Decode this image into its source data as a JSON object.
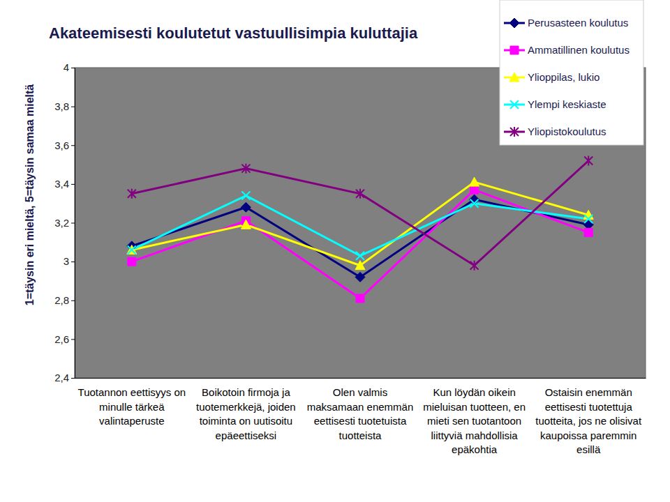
{
  "chart_data": {
    "type": "line",
    "title": "Akateemisesti koulutetut vastuullisimpia kuluttajia",
    "y_label": "1=täysin eri mieltä, 5=täysin samaa mieltä",
    "categories": [
      "Tuotannon eettisyys on minulle tärkeä valintaperuste",
      "Boikotoin firmoja ja tuotemerkkejä, joiden toiminta on uutisoitu epäeettiseksi",
      "Olen valmis maksamaan enemmän eettisesti tuotetuista tuotteista",
      "Kun löydän oikein mieluisan tuotteen, en mieti sen tuotantoon liittyviä mahdollisia epäkohtia",
      "Ostaisin enemmän eettisesti tuotettuja tuotteita, jos ne olisivat kaupoissa paremmin esillä"
    ],
    "series": [
      {
        "name": "Perusasteen koulutus",
        "color": "#000080",
        "marker": "diamond",
        "values": [
          3.08,
          3.28,
          2.92,
          3.32,
          3.19
        ]
      },
      {
        "name": "Ammatillinen koulutus",
        "color": "#ff00ff",
        "marker": "square",
        "values": [
          3.0,
          3.21,
          2.81,
          3.37,
          3.15
        ]
      },
      {
        "name": "Ylioppilas, lukio",
        "color": "#ffff00",
        "marker": "triangle",
        "values": [
          3.06,
          3.19,
          2.98,
          3.41,
          3.24
        ]
      },
      {
        "name": "Ylempi keskiaste",
        "color": "#00ffff",
        "marker": "x",
        "values": [
          3.06,
          3.34,
          3.03,
          3.3,
          3.22
        ]
      },
      {
        "name": "Yliopistokoulutus",
        "color": "#800080",
        "marker": "asterisk",
        "values": [
          3.35,
          3.48,
          3.35,
          2.98,
          3.52
        ]
      }
    ],
    "ylim": [
      2.4,
      4
    ],
    "yticks": [
      {
        "value": 2.4,
        "label": "2,4"
      },
      {
        "value": 2.6,
        "label": "2,6"
      },
      {
        "value": 2.8,
        "label": "2,8"
      },
      3,
      {
        "value": 3.2,
        "label": "3,2"
      },
      {
        "value": 3.4,
        "label": "3,4"
      },
      {
        "value": 3.6,
        "label": "3,6"
      },
      {
        "value": 3.8,
        "label": "3,8"
      },
      4
    ],
    "grid": false,
    "legend": "top-right"
  }
}
